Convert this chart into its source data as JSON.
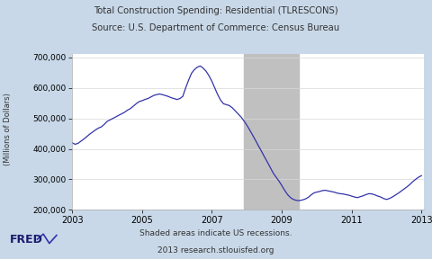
{
  "title_line1": "Total Construction Spending: Residential (TLRESCONS)",
  "title_line2": "Source: U.S. Department of Commerce: Census Bureau",
  "ylabel": "(Millions of Dollars)",
  "footer_line1": "Shaded areas indicate US recessions.",
  "footer_line2": "2013 research.stlouisfed.org",
  "recession_start": 2007.917,
  "recession_end": 2009.5,
  "xlim": [
    2003.0,
    2013.08
  ],
  "ylim": [
    200000,
    710000
  ],
  "yticks": [
    200000,
    300000,
    400000,
    500000,
    600000,
    700000
  ],
  "xticks": [
    2003,
    2005,
    2007,
    2009,
    2011,
    2013
  ],
  "bg_outer": "#c8d8e8",
  "bg_plot": "#ffffff",
  "recession_color": "#c0c0c0",
  "line_color": "#3333aa",
  "line_width": 0.9,
  "data": {
    "dates": [
      2003.0,
      2003.083,
      2003.167,
      2003.25,
      2003.333,
      2003.417,
      2003.5,
      2003.583,
      2003.667,
      2003.75,
      2003.833,
      2003.917,
      2004.0,
      2004.083,
      2004.167,
      2004.25,
      2004.333,
      2004.417,
      2004.5,
      2004.583,
      2004.667,
      2004.75,
      2004.833,
      2004.917,
      2005.0,
      2005.083,
      2005.167,
      2005.25,
      2005.333,
      2005.417,
      2005.5,
      2005.583,
      2005.667,
      2005.75,
      2005.833,
      2005.917,
      2006.0,
      2006.083,
      2006.167,
      2006.25,
      2006.333,
      2006.417,
      2006.5,
      2006.583,
      2006.667,
      2006.75,
      2006.833,
      2006.917,
      2007.0,
      2007.083,
      2007.167,
      2007.25,
      2007.333,
      2007.417,
      2007.5,
      2007.583,
      2007.667,
      2007.75,
      2007.833,
      2007.917,
      2008.0,
      2008.083,
      2008.167,
      2008.25,
      2008.333,
      2008.417,
      2008.5,
      2008.583,
      2008.667,
      2008.75,
      2008.833,
      2008.917,
      2009.0,
      2009.083,
      2009.167,
      2009.25,
      2009.333,
      2009.417,
      2009.5,
      2009.583,
      2009.667,
      2009.75,
      2009.833,
      2009.917,
      2010.0,
      2010.083,
      2010.167,
      2010.25,
      2010.333,
      2010.417,
      2010.5,
      2010.583,
      2010.667,
      2010.75,
      2010.833,
      2010.917,
      2011.0,
      2011.083,
      2011.167,
      2011.25,
      2011.333,
      2011.417,
      2011.5,
      2011.583,
      2011.667,
      2011.75,
      2011.833,
      2011.917,
      2012.0,
      2012.083,
      2012.167,
      2012.25,
      2012.333,
      2012.417,
      2012.5,
      2012.583,
      2012.667,
      2012.75,
      2012.833,
      2012.917,
      2013.0
    ],
    "values": [
      420000,
      415000,
      418000,
      425000,
      432000,
      440000,
      448000,
      455000,
      462000,
      468000,
      472000,
      480000,
      490000,
      495000,
      500000,
      505000,
      510000,
      515000,
      520000,
      527000,
      532000,
      540000,
      548000,
      555000,
      558000,
      562000,
      565000,
      570000,
      575000,
      578000,
      580000,
      578000,
      575000,
      572000,
      568000,
      565000,
      562000,
      565000,
      572000,
      600000,
      625000,
      648000,
      660000,
      668000,
      672000,
      665000,
      655000,
      640000,
      622000,
      600000,
      578000,
      560000,
      548000,
      545000,
      542000,
      535000,
      525000,
      515000,
      505000,
      492000,
      478000,
      462000,
      445000,
      428000,
      410000,
      393000,
      375000,
      358000,
      340000,
      322000,
      308000,
      295000,
      280000,
      264000,
      250000,
      240000,
      234000,
      231000,
      230000,
      232000,
      235000,
      240000,
      248000,
      255000,
      258000,
      260000,
      263000,
      264000,
      262000,
      260000,
      258000,
      255000,
      253000,
      252000,
      250000,
      248000,
      245000,
      242000,
      240000,
      243000,
      246000,
      250000,
      253000,
      252000,
      249000,
      245000,
      242000,
      237000,
      234000,
      237000,
      242000,
      248000,
      254000,
      261000,
      268000,
      275000,
      283000,
      292000,
      300000,
      307000,
      312000
    ]
  }
}
